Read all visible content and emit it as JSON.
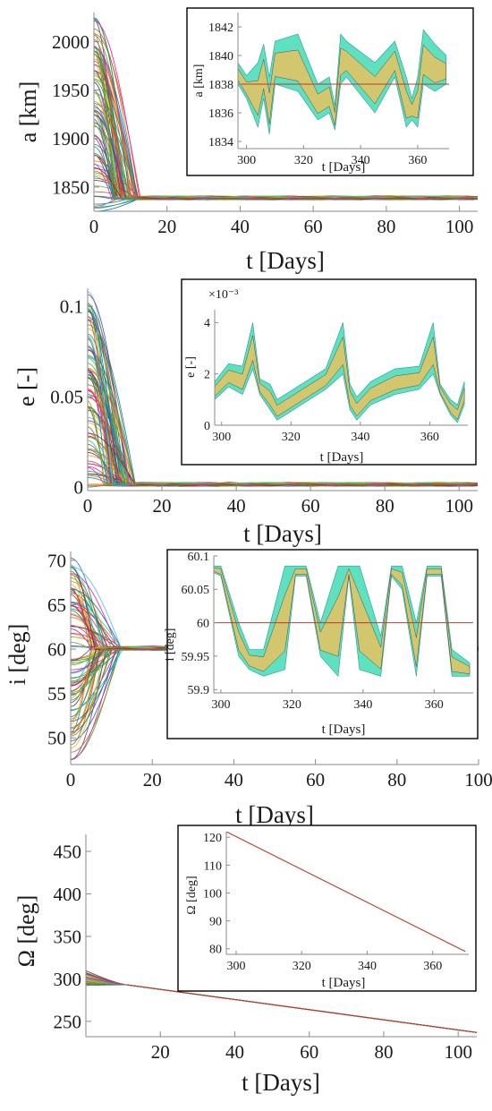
{
  "chart_data": [
    {
      "type": "line",
      "xlabel": "t [Days]",
      "ylabel": "a [km]",
      "xlim": [
        0,
        105
      ],
      "ylim": [
        1825,
        2030
      ],
      "xticks": [
        0,
        20,
        40,
        60,
        80,
        100
      ],
      "yticks": [
        1850,
        1900,
        1950,
        2000
      ],
      "converged_value": 1838,
      "n_trajectories": 90,
      "initial_range": [
        1825,
        2025
      ],
      "settle_day": 13,
      "inset": {
        "type": "line",
        "xlabel": "t [Days]",
        "ylabel": "a [km]",
        "xlim": [
          297,
          371
        ],
        "ylim": [
          1833.5,
          1843
        ],
        "xticks": [
          300,
          320,
          340,
          360
        ],
        "yticks": [
          1834,
          1836,
          1838,
          1840,
          1842
        ],
        "reference": 1838,
        "band": {
          "x": [
            297,
            300,
            304,
            306,
            308,
            310,
            318,
            325,
            329,
            331,
            333,
            335,
            345,
            352,
            356,
            358,
            360,
            362,
            366,
            370
          ],
          "upper": [
            1839.5,
            1838.6,
            1839.5,
            1840.8,
            1838.5,
            1841.0,
            1841.5,
            1838.0,
            1838.5,
            1836.5,
            1841.5,
            1841.0,
            1839.5,
            1841.0,
            1838.5,
            1837.0,
            1838.5,
            1841.8,
            1840.8,
            1840.0
          ],
          "lower": [
            1838.0,
            1837.0,
            1835.0,
            1837.0,
            1834.5,
            1838.0,
            1837.5,
            1835.5,
            1836.0,
            1834.8,
            1838.0,
            1838.5,
            1836.0,
            1838.5,
            1835.0,
            1835.5,
            1835.0,
            1838.0,
            1837.5,
            1838.0
          ]
        }
      }
    },
    {
      "type": "line",
      "xlabel": "t [Days]",
      "ylabel": "e [-]",
      "xlim": [
        0,
        105
      ],
      "ylim": [
        -0.002,
        0.11
      ],
      "xticks": [
        0,
        20,
        40,
        60,
        80,
        100
      ],
      "yticks": [
        0,
        0.05,
        0.1
      ],
      "ytick_labels": [
        "0",
        "0.05",
        "0.1"
      ],
      "converged_value": 0.001,
      "n_trajectories": 90,
      "initial_range": [
        0,
        0.108
      ],
      "settle_day": 13,
      "inset": {
        "type": "line",
        "xlabel": "t [Days]",
        "ylabel": "e [-]",
        "scale_label": "×10⁻³",
        "xlim": [
          298,
          371
        ],
        "ylim": [
          0,
          4.5
        ],
        "xticks": [
          300,
          320,
          340,
          360
        ],
        "yticks": [
          0,
          2,
          4
        ],
        "reference": 0,
        "band": {
          "x": [
            298,
            302,
            306,
            309,
            311,
            314,
            316,
            323,
            330,
            335,
            337,
            339,
            343,
            350,
            357,
            361,
            363,
            366,
            368,
            370
          ],
          "upper": [
            1.7,
            2.4,
            2.3,
            4.0,
            1.8,
            1.6,
            1.0,
            1.6,
            2.2,
            4.0,
            1.6,
            1.1,
            1.7,
            2.2,
            2.3,
            4.0,
            1.6,
            1.0,
            0.8,
            1.7
          ],
          "lower": [
            1.0,
            1.5,
            1.2,
            2.2,
            1.2,
            0.6,
            0.2,
            0.8,
            1.4,
            2.0,
            0.6,
            0.2,
            0.8,
            1.2,
            1.4,
            2.0,
            1.2,
            0.4,
            0.1,
            0.8
          ]
        }
      }
    },
    {
      "type": "line",
      "xlabel": "t [Days]",
      "ylabel": "i [deg]",
      "xlim": [
        0,
        100
      ],
      "ylim": [
        47,
        71
      ],
      "xticks": [
        0,
        20,
        40,
        60,
        80,
        100
      ],
      "yticks": [
        50,
        55,
        60,
        65,
        70
      ],
      "converged_value": 60,
      "n_trajectories": 90,
      "initial_range": [
        47.5,
        70.5
      ],
      "settle_day": 13,
      "inset": {
        "type": "line",
        "xlabel": "t [Days]",
        "ylabel": "i [deg]",
        "xlim": [
          298,
          371
        ],
        "ylim": [
          59.895,
          60.1
        ],
        "xticks": [
          300,
          320,
          340,
          360
        ],
        "yticks": [
          59.9,
          59.95,
          60,
          60.05,
          60.1
        ],
        "ytick_labels": [
          "59.9",
          "59.95",
          "60",
          "60.05",
          "60.1"
        ],
        "reference": 60,
        "band": {
          "x": [
            298,
            300,
            305,
            308,
            312,
            318,
            321,
            324,
            328,
            333,
            336,
            339,
            345,
            348,
            351,
            355,
            358,
            362,
            365,
            370
          ],
          "upper": [
            60.085,
            60.085,
            60.0,
            59.96,
            59.96,
            60.085,
            60.085,
            60.085,
            60.0,
            60.085,
            60.085,
            60.085,
            59.98,
            60.085,
            60.085,
            60.0,
            60.085,
            60.085,
            59.96,
            59.94
          ],
          "lower": [
            60.075,
            60.07,
            59.95,
            59.93,
            59.92,
            59.93,
            60.07,
            60.07,
            59.95,
            59.92,
            60.07,
            59.93,
            59.92,
            60.07,
            60.05,
            59.92,
            60.07,
            60.07,
            59.92,
            59.92
          ]
        }
      }
    },
    {
      "type": "line",
      "xlabel": "t [Days]",
      "ylabel": "Ω [deg]",
      "xlim": [
        0,
        105
      ],
      "ylim": [
        232,
        470
      ],
      "xticks": [
        20,
        40,
        60,
        80,
        100
      ],
      "yticks": [
        250,
        300,
        350,
        400,
        450
      ],
      "converged_start": [
        11,
        293
      ],
      "converged_end": [
        105,
        237
      ],
      "n_trajectories": 40,
      "initial_range": [
        292,
        310
      ],
      "settle_day": 11,
      "inset": {
        "type": "line",
        "xlabel": "t [Days]",
        "ylabel": "Ω [deg]",
        "xlim": [
          297,
          371
        ],
        "ylim": [
          78,
          122
        ],
        "xticks": [
          300,
          320,
          340,
          360
        ],
        "yticks": [
          80,
          90,
          100,
          110,
          120
        ],
        "line": {
          "x": [
            297,
            370
          ],
          "y": [
            122,
            79
          ]
        }
      }
    }
  ]
}
